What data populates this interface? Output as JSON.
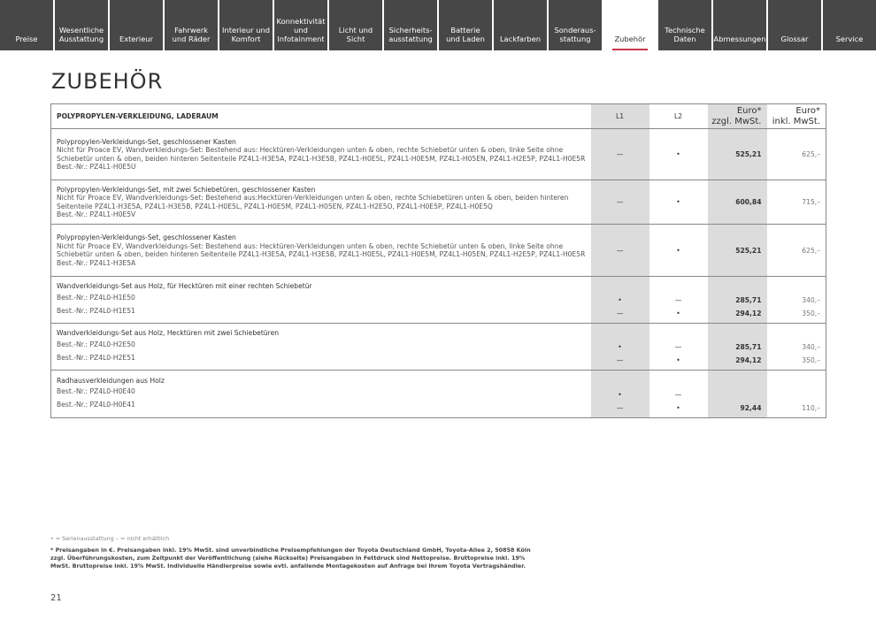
{
  "nav": {
    "tabs": [
      "Preise",
      "Wesentliche\nAusstattung",
      "Exterieur",
      "Fahrwerk\nund Räder",
      "Interieur und\nKomfort",
      "Konnektivität\nund\nInfotainment",
      "Licht und Sicht",
      "Sicherheits-\nausstattung",
      "Batterie\nund Laden",
      "Lackfarben",
      "Sonderaus-\nstattung",
      "Zubehör",
      "Technische\nDaten",
      "Abmessungen",
      "Glossar",
      "Service"
    ],
    "active": "Zubehör"
  },
  "page_title": "ZUBEHÖR",
  "table": {
    "header": {
      "section": "POLYPROPYLEN-VERKLEIDUNG, LADERAUM",
      "l1": "L1",
      "l2": "L2",
      "net": "Euro*\nzzgl. MwSt.",
      "gross": "Euro*\ninkl. MwSt."
    },
    "rows": [
      {
        "title": "Polypropylen-Verkleidungs-Set, geschlossener Kasten",
        "desc": "Nicht für Proace EV, Wandverkleidungs-Set: Bestehend aus: Hecktüren-Verkleidungen unten & oben, rechte Schiebetür unten & oben, linke Seite ohne Schiebetür unten & oben, beiden hinteren Seitenteile PZ4L1-H3E5A, PZ4L1-H3E5B, PZ4L1-H0E5L, PZ4L1-H0E5M, PZ4L1-H05EN, PZ4L1-H2E5P, PZ4L1-H0E5R",
        "codes": [
          "Best.-Nr.: PZ4L1-H0E5U"
        ],
        "l1": [
          "—"
        ],
        "l2": [
          "•"
        ],
        "net": [
          "525,21"
        ],
        "gross": [
          "625,–"
        ]
      },
      {
        "title": "Polypropylen-Verkleidungs-Set, mit zwei Schiebetüren, geschlossener Kasten",
        "desc": "Nicht für Proace EV, Wandverkleidungs-Set: Bestehend aus:Hecktüren-Verkleidungen unten & oben, rechte Schiebetüren unten & oben, beiden hinteren Seitenteile PZ4L1-H3E5A, PZ4L1-H3E5B, PZ4L1-H0E5L, PZ4L1-H0E5M, PZ4L1-H05EN, PZ4L1-H2E5O, PZ4L1-H0E5P, PZ4L1-H0E5Q",
        "codes": [
          "Best.-Nr.: PZ4L1-H0E5V"
        ],
        "l1": [
          "—"
        ],
        "l2": [
          "•"
        ],
        "net": [
          "600,84"
        ],
        "gross": [
          "715,–"
        ]
      },
      {
        "title": "Polypropylen-Verkleidungs-Set, geschlossener Kasten",
        "desc": "Nicht für Proace EV, Wandverkleidungs-Set: Bestehend aus: Hecktüren-Verkleidungen unten & oben, rechte Schiebetür unten & oben, linke Seite ohne Schiebetür unten & oben, beiden hinteren Seitenteile PZ4L1-H3E5A, PZ4L1-H3E5B, PZ4L1-H0E5L, PZ4L1-H0E5M, PZ4L1-H05EN, PZ4L1-H2E5P, PZ4L1-H0E5R",
        "codes": [
          "Best.-Nr.: PZ4L1-H3E5A"
        ],
        "l1": [
          "—"
        ],
        "l2": [
          "•"
        ],
        "net": [
          "525,21"
        ],
        "gross": [
          "625,–"
        ]
      },
      {
        "title": "Wandverkleidungs-Set aus Holz, für Hecktüren mit einer rechten Schiebetür",
        "desc": "",
        "codes": [
          "Best.-Nr.: PZ4L0-H1E50",
          "Best.-Nr.: PZ4L0-H1E51"
        ],
        "l1": [
          "•",
          "—"
        ],
        "l2": [
          "—",
          "•"
        ],
        "net": [
          "285,71",
          "294,12"
        ],
        "gross": [
          "340,–",
          "350,–"
        ]
      },
      {
        "title": "Wandverkleidungs-Set aus Holz, Hecktüren mit zwei Schiebetüren",
        "desc": "",
        "codes": [
          "Best.-Nr.: PZ4L0-H2E50",
          "Best.-Nr.: PZ4L0-H2E51"
        ],
        "l1": [
          "•",
          "—"
        ],
        "l2": [
          "—",
          "•"
        ],
        "net": [
          "285,71",
          "294,12"
        ],
        "gross": [
          "340,–",
          "350,–"
        ]
      },
      {
        "title": "Radhausverkleidungen aus Holz",
        "desc": "",
        "codes": [
          "Best.-Nr.: PZ4L0-H0E40",
          "Best.-Nr.: PZ4L0-H0E41"
        ],
        "l1": [
          "•",
          "—"
        ],
        "l2": [
          "—",
          "•"
        ],
        "net": [
          "92,44"
        ],
        "gross": [
          "110,–"
        ]
      }
    ]
  },
  "footer": {
    "legend": "• = Serienausstattung     – = nicht erhältlich",
    "note": "* Preisangaben in €. Preisangaben inkl. 19% MwSt. sind unverbindliche Preisempfehlungen der Toyota Deutschland GmbH, Toyota-Allee 2, 50858 Köln zzgl. Überführungskosten, zum Zeitpunkt der Veröffentlichung (siehe Rückseite) Preisangaben in Fettdruck sind Nettopreise. Bruttopreise inkl. 19% MwSt. Bruttopreise inkl. 19% MwSt. Individuelle Händlerpreise sowie evtl. anfallende Montagekosten auf Anfrage bei Ihrem Toyota Vertragshändler.",
    "page": "21"
  },
  "colors": {
    "nav_bg": "#474747",
    "accent": "#c8364d",
    "column_gray": "#dcdcdc"
  }
}
